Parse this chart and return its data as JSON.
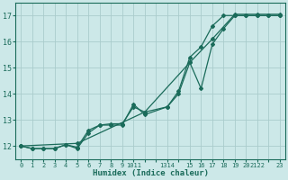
{
  "xlabel": "Humidex (Indice chaleur)",
  "bg_color": "#cce8e8",
  "grid_color": "#aacccc",
  "line_color": "#1a6b5a",
  "xlim": [
    -0.5,
    23.5
  ],
  "ylim": [
    11.5,
    17.5
  ],
  "xticks": [
    0,
    1,
    2,
    3,
    4,
    5,
    6,
    7,
    8,
    9,
    10,
    11,
    13,
    14,
    15,
    16,
    17,
    18,
    19,
    20,
    21,
    22,
    23
  ],
  "xtick_labels": [
    "0",
    "1",
    "2",
    "3",
    "4",
    "5",
    "6",
    "7",
    "8",
    "9",
    "1011",
    "",
    "1314",
    "15",
    "16",
    "17",
    "18",
    "19",
    "20",
    "21",
    "2223",
    "",
    ""
  ],
  "yticks": [
    12,
    13,
    14,
    15,
    16,
    17
  ],
  "line1_x": [
    0,
    1,
    2,
    3,
    4,
    5,
    6,
    7,
    8,
    9,
    10,
    11,
    13,
    14,
    15,
    16,
    17,
    18,
    19,
    20,
    21,
    22,
    23
  ],
  "line1_y": [
    12.0,
    11.9,
    11.9,
    11.9,
    12.05,
    11.95,
    12.6,
    12.8,
    12.85,
    12.85,
    13.5,
    13.3,
    13.5,
    14.0,
    15.2,
    14.2,
    15.9,
    16.5,
    17.0,
    17.0,
    17.0,
    17.0,
    17.0
  ],
  "line2_x": [
    0,
    1,
    2,
    3,
    4,
    5,
    6,
    7,
    8,
    9,
    10,
    11,
    13,
    14,
    15,
    16,
    17,
    18,
    19,
    20,
    21,
    22,
    23
  ],
  "line2_y": [
    12.0,
    11.9,
    11.9,
    11.9,
    12.05,
    11.9,
    12.5,
    12.8,
    12.8,
    12.8,
    13.6,
    13.2,
    13.5,
    14.1,
    15.4,
    15.8,
    16.6,
    17.0,
    17.0,
    17.0,
    17.0,
    17.0,
    17.0
  ],
  "line3_x": [
    0,
    5,
    11,
    15,
    17,
    19,
    21,
    23
  ],
  "line3_y": [
    12.0,
    12.1,
    13.3,
    15.2,
    16.1,
    17.05,
    17.05,
    17.05
  ]
}
